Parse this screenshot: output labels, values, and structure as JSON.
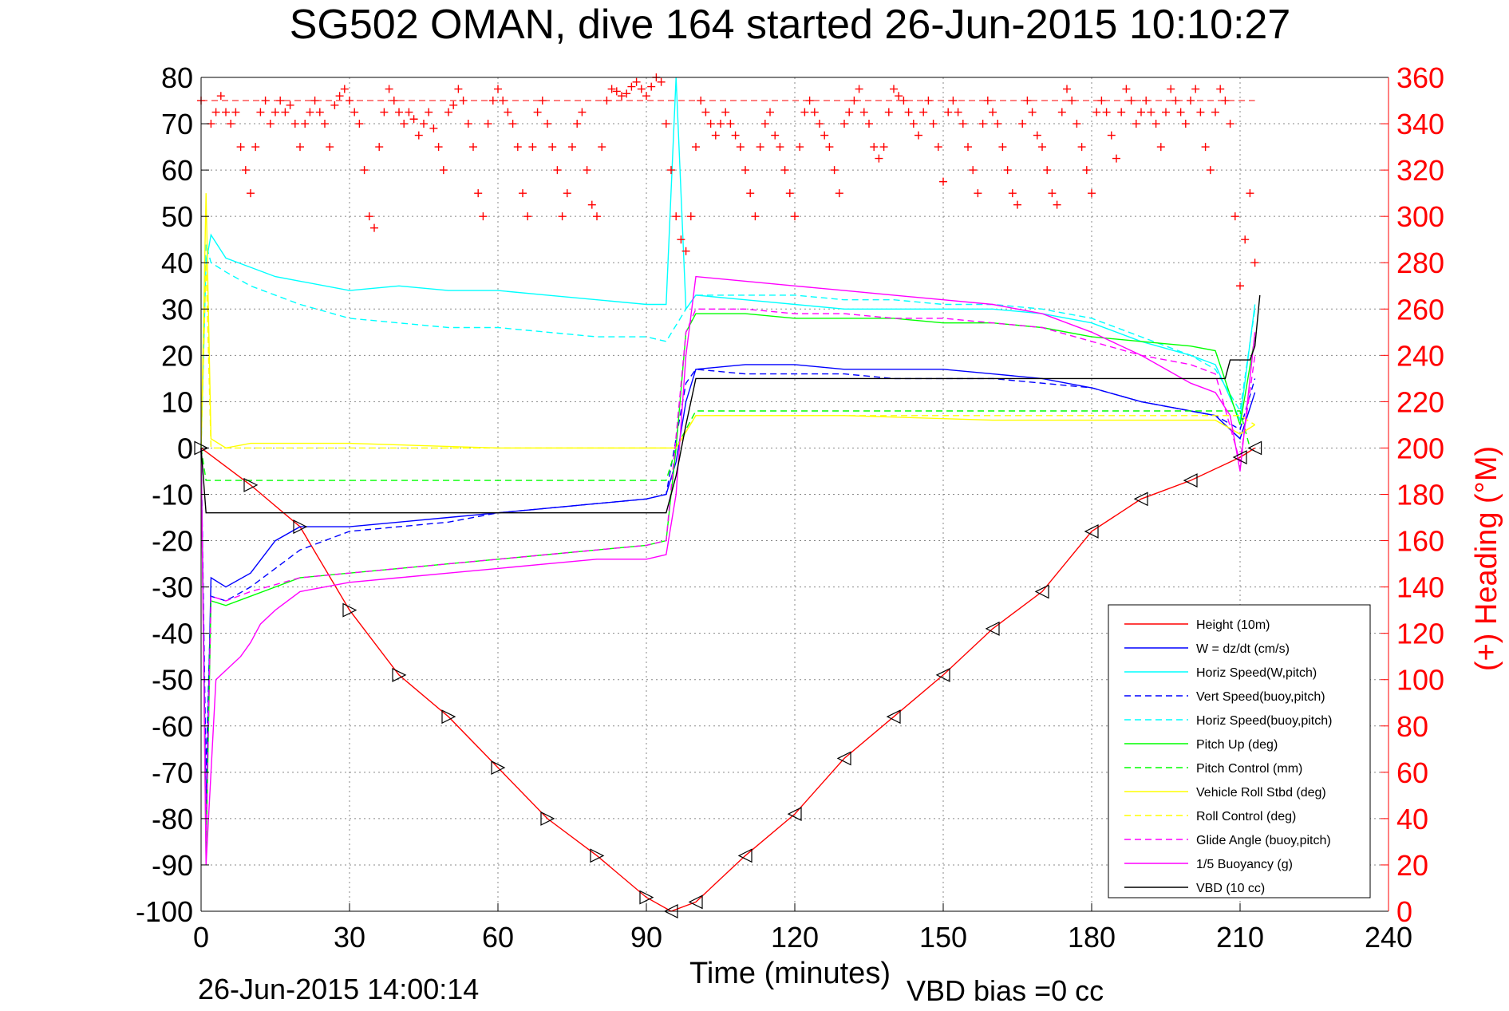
{
  "chart_data": {
    "type": "line",
    "title": "SG502 OMAN, dive 164 started 26-Jun-2015 10:10:27",
    "xlabel": "Time (minutes)",
    "ylabel_right": "(+) Heading (°M)",
    "footer_left": "26-Jun-2015 14:00:14",
    "footer_right": "VBD bias =0 cc",
    "xlim": [
      0,
      240
    ],
    "ylim": [
      -100,
      80
    ],
    "ylim_right": [
      0,
      360
    ],
    "xticks": [
      "0",
      "30",
      "60",
      "90",
      "120",
      "150",
      "180",
      "210",
      "240"
    ],
    "yticks": [
      "80",
      "70",
      "60",
      "50",
      "40",
      "30",
      "20",
      "10",
      "0",
      "-10",
      "-20",
      "-30",
      "-40",
      "-50",
      "-60",
      "-70",
      "-80",
      "-90",
      "-100"
    ],
    "yticks_right": [
      "360",
      "340",
      "320",
      "300",
      "280",
      "260",
      "240",
      "220",
      "200",
      "180",
      "160",
      "140",
      "120",
      "100",
      "80",
      "60",
      "40",
      "20",
      "0"
    ],
    "grid": true,
    "legend_position": "bottom-right",
    "colors": {
      "height": "#ff0000",
      "w": "#0000ff",
      "horiz_w": "#00ffff",
      "pitch_up": "#00ff00",
      "roll": "#ffff00",
      "glide": "#ff00ff",
      "vbd": "#000000",
      "heading": "#ff0000"
    },
    "series": [
      {
        "name": "Height (10m)",
        "color": "#ff0000",
        "dash": false,
        "x": [
          0,
          10,
          20,
          30,
          40,
          50,
          60,
          70,
          80,
          90,
          95,
          100,
          110,
          120,
          130,
          140,
          150,
          160,
          170,
          180,
          190,
          200,
          210,
          213
        ],
        "y": [
          0,
          -8,
          -17,
          -35,
          -49,
          -58,
          -69,
          -80,
          -88,
          -97,
          -100,
          -98,
          -88,
          -79,
          -67,
          -58,
          -49,
          -39,
          -31,
          -18,
          -11,
          -7,
          -2,
          0
        ]
      },
      {
        "name": "W = dz/dt (cm/s)",
        "color": "#0000ff",
        "dash": false,
        "x": [
          0,
          1,
          2,
          5,
          10,
          15,
          20,
          30,
          40,
          50,
          60,
          70,
          80,
          90,
          94,
          96,
          98,
          100,
          110,
          120,
          130,
          140,
          150,
          160,
          170,
          180,
          190,
          200,
          205,
          210,
          213
        ],
        "y": [
          0,
          -80,
          -28,
          -30,
          -27,
          -20,
          -17,
          -17,
          -16,
          -15,
          -14,
          -13,
          -12,
          -11,
          -10,
          -3,
          10,
          17,
          18,
          18,
          17,
          17,
          17,
          16,
          15,
          13,
          10,
          8,
          7,
          2,
          12
        ]
      },
      {
        "name": "Horiz Speed(W,pitch)",
        "color": "#00ffff",
        "dash": false,
        "x": [
          0,
          1,
          2,
          5,
          10,
          15,
          20,
          30,
          40,
          50,
          60,
          70,
          80,
          90,
          94,
          96,
          98,
          100,
          110,
          120,
          130,
          140,
          150,
          160,
          170,
          180,
          190,
          200,
          205,
          210,
          213
        ],
        "y": [
          0,
          40,
          46,
          41,
          39,
          37,
          36,
          34,
          35,
          34,
          34,
          33,
          32,
          31,
          31,
          80,
          30,
          33,
          32,
          31,
          30,
          30,
          30,
          30,
          29,
          27,
          23,
          20,
          18,
          6,
          31
        ]
      },
      {
        "name": "Vert Speed(buoy,pitch)",
        "color": "#0000ff",
        "dash": true,
        "x": [
          0,
          1,
          2,
          5,
          10,
          20,
          30,
          40,
          50,
          60,
          70,
          80,
          90,
          94,
          98,
          100,
          110,
          120,
          130,
          140,
          150,
          160,
          170,
          180,
          190,
          200,
          205,
          210,
          213
        ],
        "y": [
          0,
          -70,
          -32,
          -33,
          -30,
          -22,
          -18,
          -17,
          -16,
          -14,
          -13,
          -12,
          -11,
          -10,
          14,
          17,
          16,
          16,
          16,
          15,
          15,
          15,
          14,
          13,
          10,
          8,
          7,
          4,
          15
        ]
      },
      {
        "name": "Horiz Speed(buoy,pitch)",
        "color": "#00ffff",
        "dash": true,
        "x": [
          0,
          1,
          2,
          5,
          10,
          20,
          30,
          40,
          50,
          60,
          70,
          80,
          90,
          94,
          98,
          100,
          110,
          120,
          130,
          140,
          150,
          160,
          170,
          180,
          190,
          200,
          205,
          210,
          213
        ],
        "y": [
          0,
          44,
          40,
          38,
          35,
          31,
          28,
          27,
          26,
          26,
          25,
          24,
          24,
          23,
          30,
          33,
          33,
          33,
          32,
          32,
          31,
          31,
          30,
          28,
          24,
          20,
          17,
          8,
          30
        ]
      },
      {
        "name": "Pitch Up (deg)",
        "color": "#00ff00",
        "dash": false,
        "x": [
          0,
          1,
          2,
          5,
          10,
          15,
          20,
          30,
          40,
          50,
          60,
          70,
          80,
          90,
          94,
          96,
          98,
          100,
          110,
          120,
          130,
          140,
          150,
          160,
          170,
          180,
          190,
          200,
          205,
          210,
          213
        ],
        "y": [
          0,
          -88,
          -33,
          -34,
          -32,
          -30,
          -28,
          -27,
          -26,
          -25,
          -24,
          -23,
          -22,
          -21,
          -20,
          0,
          25,
          29,
          29,
          28,
          28,
          28,
          27,
          27,
          26,
          24,
          23,
          22,
          21,
          5,
          24
        ]
      },
      {
        "name": "Pitch Control (mm)",
        "color": "#00ff00",
        "dash": true,
        "x": [
          0,
          1,
          2,
          94,
          96,
          100,
          210,
          212
        ],
        "y": [
          0,
          -7,
          -7,
          -7,
          0,
          8,
          8,
          0
        ]
      },
      {
        "name": "Vehicle Roll Stbd (deg)",
        "color": "#ffff00",
        "dash": false,
        "x": [
          0,
          1,
          2,
          5,
          10,
          30,
          60,
          90,
          94,
          96,
          100,
          130,
          160,
          190,
          205,
          210,
          213
        ],
        "y": [
          0,
          55,
          2,
          0,
          1,
          1,
          0,
          0,
          0,
          0,
          7,
          7,
          6,
          6,
          6,
          3,
          5
        ]
      },
      {
        "name": "Roll Control (deg)",
        "color": "#ffff00",
        "dash": true,
        "x": [
          0,
          1,
          2,
          94,
          96,
          100,
          210,
          213
        ],
        "y": [
          0,
          40,
          0,
          0,
          0,
          7,
          7,
          5
        ]
      },
      {
        "name": "Glide Angle (buoy,pitch)",
        "color": "#ff00ff",
        "dash": true,
        "x": [
          0,
          1,
          2,
          5,
          10,
          20,
          30,
          40,
          50,
          60,
          70,
          80,
          90,
          94,
          98,
          100,
          110,
          120,
          130,
          140,
          150,
          160,
          170,
          180,
          190,
          200,
          205,
          210,
          213
        ],
        "y": [
          0,
          -85,
          -32,
          -33,
          -31,
          -28,
          -27,
          -26,
          -25,
          -24,
          -23,
          -22,
          -21,
          -20,
          25,
          30,
          30,
          29,
          29,
          28,
          28,
          27,
          26,
          23,
          20,
          18,
          16,
          -3,
          20
        ]
      },
      {
        "name": "1/5 Buoyancy (g)",
        "color": "#ff00ff",
        "dash": false,
        "x": [
          0,
          1,
          2,
          3,
          5,
          8,
          10,
          12,
          15,
          20,
          30,
          40,
          50,
          60,
          70,
          80,
          90,
          94,
          96,
          98,
          100,
          110,
          120,
          130,
          140,
          150,
          160,
          170,
          180,
          190,
          200,
          205,
          208,
          210,
          213
        ],
        "y": [
          0,
          -90,
          -70,
          -50,
          -48,
          -45,
          -42,
          -38,
          -35,
          -31,
          -29,
          -28,
          -27,
          -26,
          -25,
          -24,
          -24,
          -23,
          -10,
          20,
          37,
          36,
          35,
          34,
          33,
          32,
          31,
          29,
          25,
          20,
          14,
          12,
          7,
          -5,
          25
        ]
      },
      {
        "name": "VBD (10 cc)",
        "color": "#000000",
        "dash": false,
        "x": [
          0,
          1,
          2,
          94,
          96,
          98,
          100,
          207,
          208,
          212,
          213,
          214
        ],
        "y": [
          0,
          -14,
          -14,
          -14,
          -6,
          5,
          15,
          15,
          19,
          19,
          22,
          33
        ]
      }
    ],
    "heading": {
      "name": "(+) Heading (°M)",
      "color": "#ff0000",
      "x": [
        0,
        2,
        3,
        4,
        5,
        6,
        7,
        8,
        9,
        10,
        11,
        12,
        13,
        14,
        15,
        16,
        17,
        18,
        19,
        20,
        21,
        22,
        23,
        24,
        25,
        26,
        27,
        28,
        29,
        30,
        31,
        32,
        33,
        34,
        35,
        36,
        37,
        38,
        39,
        40,
        41,
        42,
        43,
        44,
        45,
        46,
        47,
        48,
        49,
        50,
        51,
        52,
        53,
        54,
        55,
        56,
        57,
        58,
        59,
        60,
        61,
        62,
        63,
        64,
        65,
        66,
        67,
        68,
        69,
        70,
        71,
        72,
        73,
        74,
        75,
        76,
        77,
        78,
        79,
        80,
        81,
        82,
        83,
        84,
        85,
        86,
        87,
        88,
        89,
        90,
        91,
        92,
        93,
        94,
        95,
        96,
        97,
        98,
        99,
        100,
        101,
        102,
        103,
        104,
        105,
        106,
        107,
        108,
        109,
        110,
        111,
        112,
        113,
        114,
        115,
        116,
        117,
        118,
        119,
        120,
        121,
        122,
        123,
        124,
        125,
        126,
        127,
        128,
        129,
        130,
        131,
        132,
        133,
        134,
        135,
        136,
        137,
        138,
        139,
        140,
        141,
        142,
        143,
        144,
        145,
        146,
        147,
        148,
        149,
        150,
        151,
        152,
        153,
        154,
        155,
        156,
        157,
        158,
        159,
        160,
        161,
        162,
        163,
        164,
        165,
        166,
        167,
        168,
        169,
        170,
        171,
        172,
        173,
        174,
        175,
        176,
        177,
        178,
        179,
        180,
        181,
        182,
        183,
        184,
        185,
        186,
        187,
        188,
        189,
        190,
        191,
        192,
        193,
        194,
        195,
        196,
        197,
        198,
        199,
        200,
        201,
        202,
        203,
        204,
        205,
        206,
        207,
        208,
        209,
        210,
        211,
        212,
        213
      ],
      "y": [
        350,
        340,
        345,
        352,
        345,
        340,
        345,
        330,
        320,
        310,
        330,
        345,
        350,
        340,
        345,
        350,
        345,
        348,
        340,
        330,
        340,
        345,
        350,
        345,
        340,
        330,
        348,
        352,
        355,
        350,
        345,
        340,
        320,
        300,
        295,
        330,
        345,
        355,
        350,
        345,
        340,
        345,
        342,
        335,
        340,
        345,
        338,
        330,
        320,
        345,
        348,
        355,
        350,
        340,
        330,
        310,
        300,
        340,
        350,
        355,
        350,
        345,
        340,
        330,
        310,
        300,
        330,
        345,
        350,
        340,
        330,
        320,
        300,
        310,
        330,
        340,
        345,
        320,
        305,
        300,
        330,
        350,
        355,
        354,
        352,
        353,
        356,
        358,
        355,
        352,
        356,
        360,
        358,
        340,
        320,
        300,
        290,
        285,
        300,
        330,
        350,
        345,
        340,
        335,
        340,
        345,
        340,
        335,
        330,
        320,
        310,
        300,
        330,
        340,
        345,
        335,
        330,
        320,
        310,
        300,
        330,
        345,
        350,
        345,
        340,
        335,
        330,
        320,
        310,
        340,
        345,
        350,
        355,
        345,
        340,
        330,
        325,
        330,
        345,
        355,
        352,
        350,
        345,
        340,
        335,
        345,
        350,
        340,
        330,
        315,
        345,
        350,
        345,
        340,
        330,
        320,
        310,
        340,
        350,
        345,
        340,
        330,
        320,
        310,
        305,
        340,
        350,
        345,
        335,
        330,
        320,
        310,
        305,
        345,
        355,
        350,
        340,
        330,
        320,
        310,
        345,
        350,
        345,
        335,
        325,
        345,
        355,
        350,
        340,
        345,
        350,
        345,
        340,
        330,
        345,
        355,
        350,
        345,
        340,
        350,
        355,
        345,
        330,
        320,
        345,
        355,
        350,
        340,
        300,
        270,
        290,
        310,
        280
      ]
    }
  }
}
